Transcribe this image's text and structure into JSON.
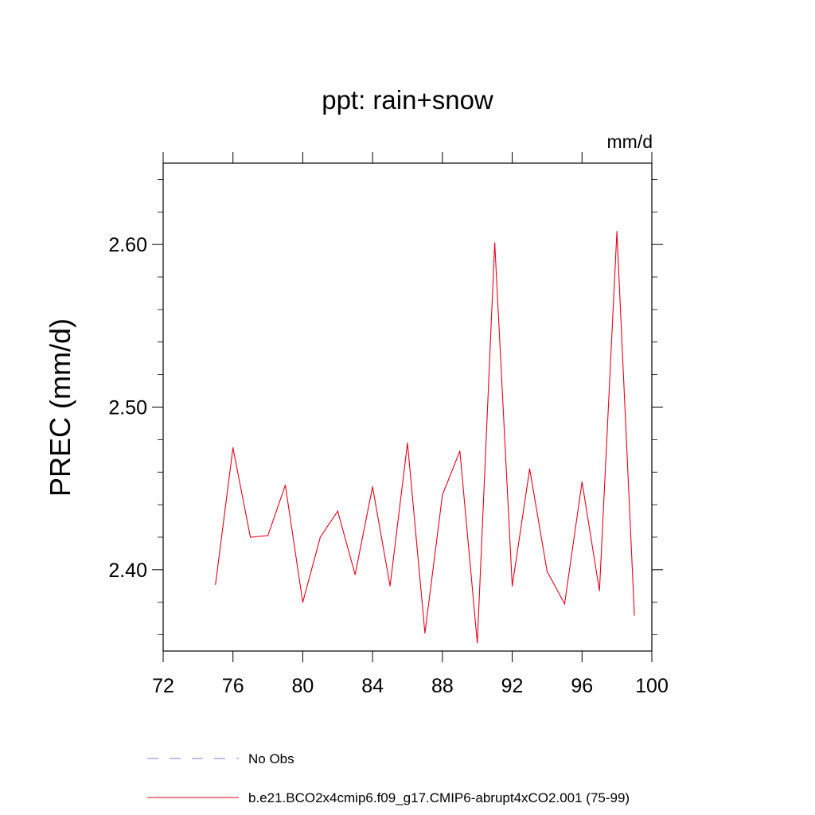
{
  "chart_data": {
    "type": "line",
    "title": "ppt: rain+snow",
    "units": "mm/d",
    "ylabel": "PREC  (mm/d)",
    "xlabel": "",
    "xlim": [
      72,
      100
    ],
    "ylim": [
      2.35,
      2.65
    ],
    "x_ticks": [
      72,
      76,
      80,
      84,
      88,
      92,
      96,
      100
    ],
    "x_tick_labels": [
      "72",
      "76",
      "80",
      "84",
      "88",
      "92",
      "96",
      "100"
    ],
    "y_ticks": [
      2.4,
      2.5,
      2.6
    ],
    "y_tick_labels": [
      "2.40",
      "2.50",
      "2.60"
    ],
    "grid": false,
    "legend_position": "bottom",
    "legend": [
      {
        "label": "No Obs",
        "style": "dashed",
        "color": "#7f7fbf"
      },
      {
        "label": "b.e21.BCO2x4cmip6.f09_g17.CMIP6-abrupt4xCO2.001 (75-99)",
        "style": "solid",
        "color": "#e8001c"
      }
    ],
    "series": [
      {
        "name": "b.e21.BCO2x4cmip6.f09_g17.CMIP6-abrupt4xCO2.001 (75-99)",
        "color": "#e8001c",
        "x": [
          75,
          76,
          77,
          78,
          79,
          80,
          81,
          82,
          83,
          84,
          85,
          86,
          87,
          88,
          89,
          90,
          91,
          92,
          93,
          94,
          95,
          96,
          97,
          98,
          99
        ],
        "y": [
          2.391,
          2.475,
          2.42,
          2.421,
          2.452,
          2.38,
          2.42,
          2.436,
          2.397,
          2.451,
          2.39,
          2.478,
          2.361,
          2.446,
          2.473,
          2.355,
          2.601,
          2.39,
          2.462,
          2.399,
          2.379,
          2.454,
          2.387,
          2.608,
          2.372
        ]
      }
    ]
  }
}
